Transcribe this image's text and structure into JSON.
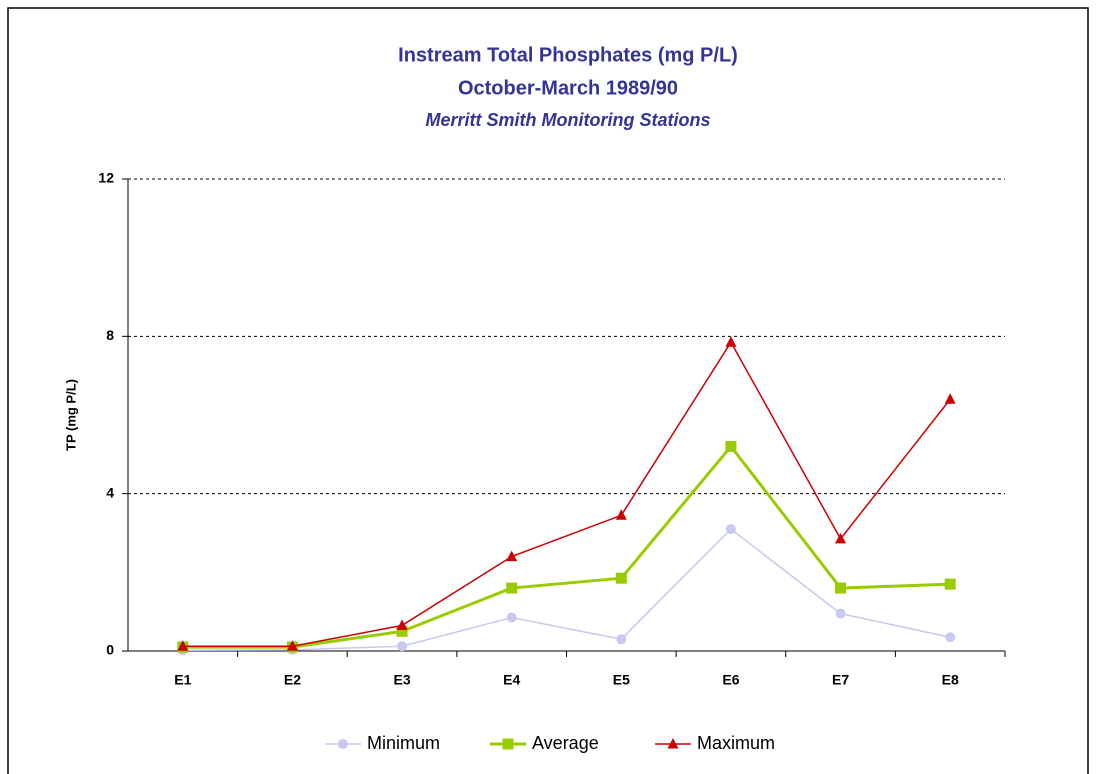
{
  "chart_data": {
    "type": "line",
    "title": "Instream Total Phosphates  (mg P/L)",
    "subtitle": "October-March 1989/90",
    "subtitle2": "Merritt Smith Monitoring Stations",
    "y_label": "TP (mg P/L)",
    "categories": [
      "E1",
      "E2",
      "E3",
      "E4",
      "E5",
      "E6",
      "E7",
      "E8"
    ],
    "series": [
      {
        "name": "Minimum",
        "color": "#c8c8f0",
        "marker": "circle",
        "values": [
          0.02,
          0.03,
          0.12,
          0.85,
          0.3,
          3.1,
          0.95,
          0.35
        ]
      },
      {
        "name": "Average",
        "color": "#99cc00",
        "marker": "square",
        "values": [
          0.1,
          0.1,
          0.5,
          1.6,
          1.85,
          5.2,
          1.6,
          1.7
        ]
      },
      {
        "name": "Maximum",
        "color": "#cc0000",
        "marker": "triangle",
        "values": [
          0.12,
          0.12,
          0.65,
          2.4,
          3.45,
          7.85,
          2.85,
          6.4
        ]
      }
    ],
    "ylim": [
      0,
      12
    ],
    "yticks": [
      0,
      4,
      8,
      12
    ],
    "grid": true,
    "legend": "bottom"
  }
}
